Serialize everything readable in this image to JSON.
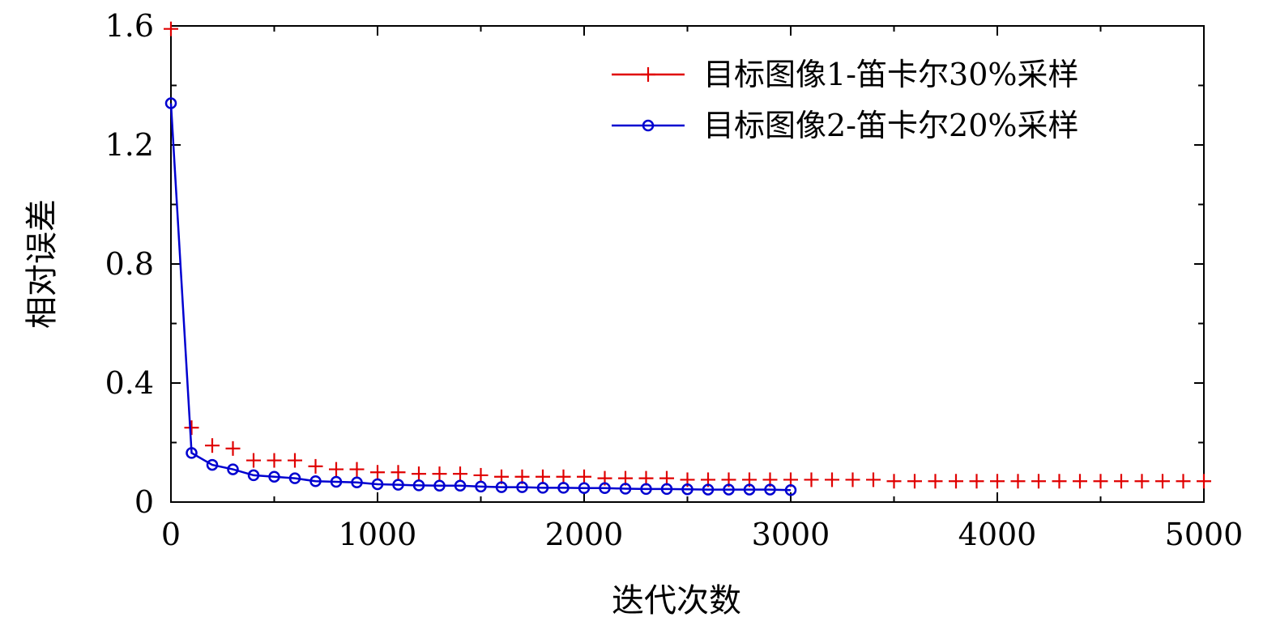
{
  "chart_data": {
    "type": "line",
    "xlabel": "迭代次数",
    "ylabel": "相对误差",
    "xlim": [
      0,
      5000
    ],
    "ylim": [
      0,
      1.6
    ],
    "x_ticks": [
      0,
      1000,
      2000,
      3000,
      4000,
      5000
    ],
    "y_ticks": [
      0,
      0.4,
      0.8,
      1.2,
      1.6
    ],
    "x_tick_labels": [
      "0",
      "1000",
      "2000",
      "3000",
      "4000",
      "5000"
    ],
    "y_tick_labels": [
      "0",
      "0.4",
      "0.8",
      "1.2",
      "1.6"
    ],
    "grid": false,
    "legend_position": "top-right",
    "series": [
      {
        "name": "目标图像1-笛卡尔30%采样",
        "color": "#e00000",
        "marker": "plus",
        "line": false,
        "x": [
          0,
          100,
          200,
          300,
          400,
          500,
          600,
          700,
          800,
          900,
          1000,
          1100,
          1200,
          1300,
          1400,
          1500,
          1600,
          1700,
          1800,
          1900,
          2000,
          2100,
          2200,
          2300,
          2400,
          2500,
          2600,
          2700,
          2800,
          2900,
          3000,
          3100,
          3200,
          3300,
          3400,
          3500,
          3600,
          3700,
          3800,
          3900,
          4000,
          4100,
          4200,
          4300,
          4400,
          4500,
          4600,
          4700,
          4800,
          4900,
          5000
        ],
        "y": [
          1.59,
          0.25,
          0.19,
          0.18,
          0.14,
          0.14,
          0.14,
          0.12,
          0.11,
          0.11,
          0.1,
          0.1,
          0.095,
          0.095,
          0.095,
          0.09,
          0.085,
          0.085,
          0.085,
          0.085,
          0.085,
          0.08,
          0.08,
          0.08,
          0.08,
          0.075,
          0.075,
          0.075,
          0.075,
          0.075,
          0.075,
          0.075,
          0.075,
          0.075,
          0.075,
          0.07,
          0.07,
          0.07,
          0.07,
          0.07,
          0.07,
          0.07,
          0.07,
          0.07,
          0.07,
          0.07,
          0.07,
          0.07,
          0.07,
          0.07,
          0.07
        ]
      },
      {
        "name": "目标图像2-笛卡尔20%采样",
        "color": "#0000d0",
        "marker": "circle",
        "line": true,
        "x": [
          0,
          100,
          200,
          300,
          400,
          500,
          600,
          700,
          800,
          900,
          1000,
          1100,
          1200,
          1300,
          1400,
          1500,
          1600,
          1700,
          1800,
          1900,
          2000,
          2100,
          2200,
          2300,
          2400,
          2500,
          2600,
          2700,
          2800,
          2900,
          3000
        ],
        "y": [
          1.34,
          0.165,
          0.125,
          0.11,
          0.09,
          0.085,
          0.08,
          0.07,
          0.068,
          0.066,
          0.06,
          0.058,
          0.056,
          0.055,
          0.055,
          0.052,
          0.05,
          0.05,
          0.048,
          0.048,
          0.047,
          0.047,
          0.045,
          0.044,
          0.044,
          0.043,
          0.042,
          0.042,
          0.042,
          0.042,
          0.04
        ]
      }
    ]
  }
}
